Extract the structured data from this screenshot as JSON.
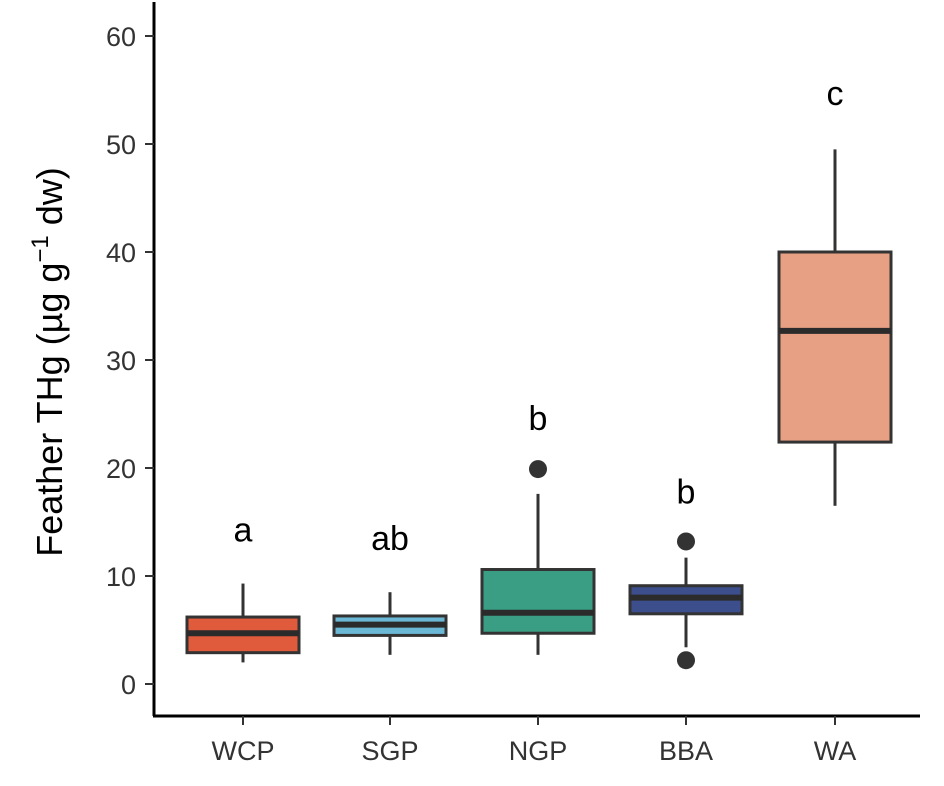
{
  "chart_data": {
    "type": "box",
    "ylabel": {
      "prefix": "Feather THg (",
      "unit_symbol": "µg g",
      "exponent": "−1",
      "suffix": " dw)"
    },
    "xlabel": "",
    "ylim": [
      -3,
      63
    ],
    "yticks": [
      0,
      10,
      20,
      30,
      40,
      50,
      60
    ],
    "ytick_labels": [
      "0",
      "10",
      "20",
      "30",
      "40",
      "50",
      "60"
    ],
    "grid": false,
    "legend": "none",
    "categories": [
      "WCP",
      "SGP",
      "NGP",
      "BBA",
      "WA"
    ],
    "boxes": [
      {
        "category": "WCP",
        "whisker_low": 2.0,
        "q1": 2.9,
        "median": 4.7,
        "q3": 6.2,
        "whisker_high": 9.3,
        "outliers": [],
        "fill": "#e05a3c",
        "letter": "a",
        "letter_y": 13.2
      },
      {
        "category": "SGP",
        "whisker_low": 2.7,
        "q1": 4.5,
        "median": 5.5,
        "q3": 6.3,
        "whisker_high": 8.5,
        "outliers": [],
        "fill": "#6bb8d6",
        "letter": "ab",
        "letter_y": 12.4
      },
      {
        "category": "NGP",
        "whisker_low": 2.7,
        "q1": 4.7,
        "median": 6.6,
        "q3": 10.6,
        "whisker_high": 17.6,
        "outliers": [
          19.9
        ],
        "fill": "#3a9e84",
        "letter": "b",
        "letter_y": 23.5
      },
      {
        "category": "BBA",
        "whisker_low": 3.4,
        "q1": 6.5,
        "median": 8.0,
        "q3": 9.1,
        "whisker_high": 11.7,
        "outliers": [
          13.2,
          2.2
        ],
        "fill": "#3c4e8c",
        "letter": "b",
        "letter_y": 16.7
      },
      {
        "category": "WA",
        "whisker_low": 16.5,
        "q1": 22.4,
        "median": 32.7,
        "q3": 40.0,
        "whisker_high": 49.5,
        "outliers": [],
        "fill": "#e8a084",
        "letter": "c",
        "letter_y": 53.6
      }
    ]
  }
}
